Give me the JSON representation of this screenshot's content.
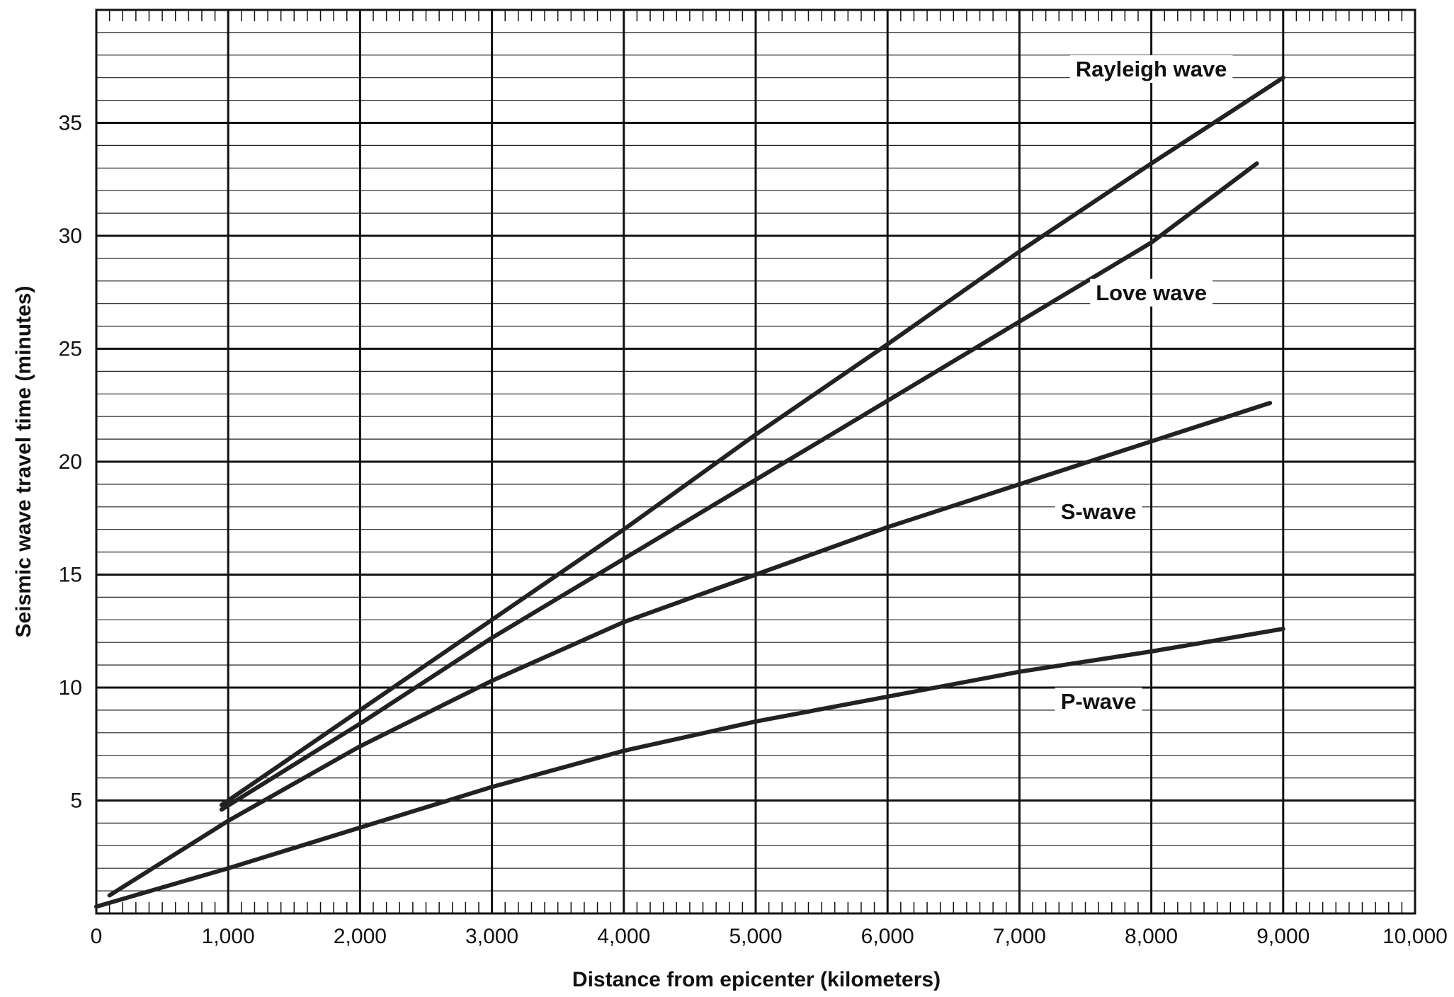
{
  "chart_data": {
    "type": "line",
    "xlabel": "Distance from epicenter (kilometers)",
    "ylabel": "Seismic wave travel time (minutes)",
    "xlim": [
      0,
      10000
    ],
    "ylim": [
      0,
      40
    ],
    "x_ticks": [
      0,
      1000,
      2000,
      3000,
      4000,
      5000,
      6000,
      7000,
      8000,
      9000,
      10000
    ],
    "x_tick_labels": [
      "0",
      "1,000",
      "2,000",
      "3,000",
      "4,000",
      "5,000",
      "6,000",
      "7,000",
      "8,000",
      "9,000",
      "10,000"
    ],
    "y_ticks": [
      5,
      10,
      15,
      20,
      25,
      30,
      35
    ],
    "y_tick_labels": [
      "5",
      "10",
      "15",
      "20",
      "25",
      "30",
      "35"
    ],
    "grid": true,
    "series": [
      {
        "name": "Rayleigh wave",
        "points": [
          [
            950,
            4.8
          ],
          [
            2000,
            9.0
          ],
          [
            3000,
            13.0
          ],
          [
            4000,
            17.0
          ],
          [
            5000,
            21.2
          ],
          [
            6000,
            25.2
          ],
          [
            7000,
            29.3
          ],
          [
            8000,
            33.2
          ],
          [
            9000,
            37.0
          ]
        ]
      },
      {
        "name": "Love wave",
        "points": [
          [
            950,
            4.6
          ],
          [
            2000,
            8.4
          ],
          [
            3000,
            12.2
          ],
          [
            4000,
            15.7
          ],
          [
            5000,
            19.2
          ],
          [
            6000,
            22.7
          ],
          [
            7000,
            26.2
          ],
          [
            8000,
            29.7
          ],
          [
            8800,
            33.2
          ]
        ]
      },
      {
        "name": "S-wave",
        "points": [
          [
            100,
            0.8
          ],
          [
            1000,
            4.1
          ],
          [
            2000,
            7.4
          ],
          [
            3000,
            10.3
          ],
          [
            4000,
            12.9
          ],
          [
            5000,
            15.0
          ],
          [
            6000,
            17.1
          ],
          [
            7000,
            19.0
          ],
          [
            8000,
            20.9
          ],
          [
            8900,
            22.6
          ]
        ]
      },
      {
        "name": "P-wave",
        "points": [
          [
            0,
            0.3
          ],
          [
            1000,
            2.0
          ],
          [
            2000,
            3.8
          ],
          [
            3000,
            5.6
          ],
          [
            4000,
            7.2
          ],
          [
            5000,
            8.5
          ],
          [
            6000,
            9.6
          ],
          [
            7000,
            10.7
          ],
          [
            8000,
            11.6
          ],
          [
            9000,
            12.6
          ]
        ]
      }
    ]
  }
}
